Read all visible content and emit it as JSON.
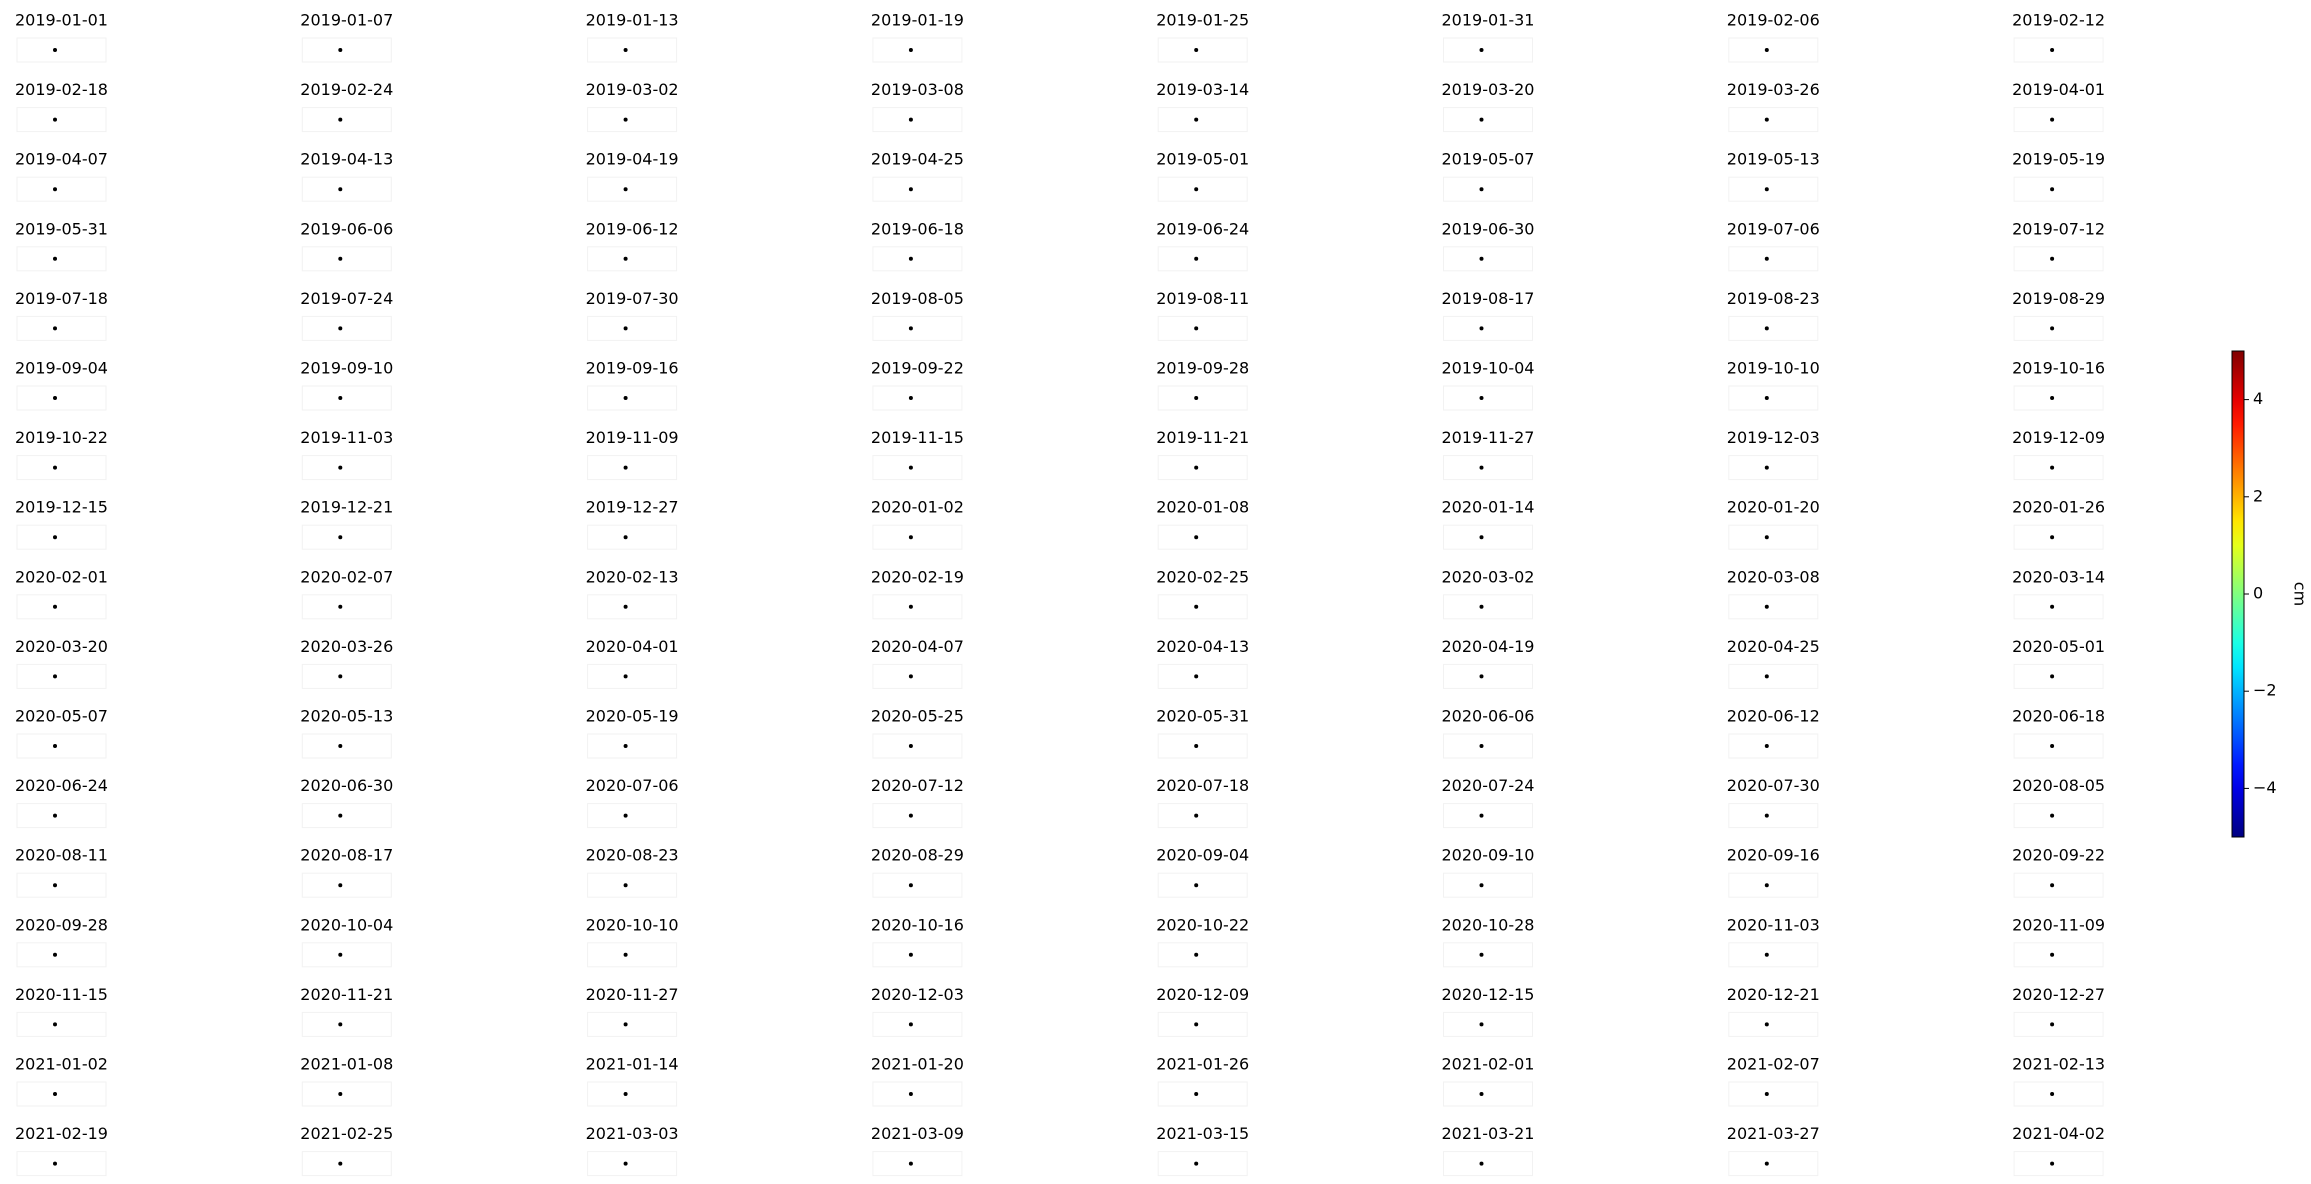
{
  "chart_data": {
    "type": "small-multiples",
    "panels": [
      "2019-01-01",
      "2019-01-07",
      "2019-01-13",
      "2019-01-19",
      "2019-01-25",
      "2019-01-31",
      "2019-02-06",
      "2019-02-12",
      "2019-02-18",
      "2019-02-24",
      "2019-03-02",
      "2019-03-08",
      "2019-03-14",
      "2019-03-20",
      "2019-03-26",
      "2019-04-01",
      "2019-04-07",
      "2019-04-13",
      "2019-04-19",
      "2019-04-25",
      "2019-05-01",
      "2019-05-07",
      "2019-05-13",
      "2019-05-19",
      "2019-05-31",
      "2019-06-06",
      "2019-06-12",
      "2019-06-18",
      "2019-06-24",
      "2019-06-30",
      "2019-07-06",
      "2019-07-12",
      "2019-07-18",
      "2019-07-24",
      "2019-07-30",
      "2019-08-05",
      "2019-08-11",
      "2019-08-17",
      "2019-08-23",
      "2019-08-29",
      "2019-09-04",
      "2019-09-10",
      "2019-09-16",
      "2019-09-22",
      "2019-09-28",
      "2019-10-04",
      "2019-10-10",
      "2019-10-16",
      "2019-10-22",
      "2019-11-03",
      "2019-11-09",
      "2019-11-15",
      "2019-11-21",
      "2019-11-27",
      "2019-12-03",
      "2019-12-09",
      "2019-12-15",
      "2019-12-21",
      "2019-12-27",
      "2020-01-02",
      "2020-01-08",
      "2020-01-14",
      "2020-01-20",
      "2020-01-26",
      "2020-02-01",
      "2020-02-07",
      "2020-02-13",
      "2020-02-19",
      "2020-02-25",
      "2020-03-02",
      "2020-03-08",
      "2020-03-14",
      "2020-03-20",
      "2020-03-26",
      "2020-04-01",
      "2020-04-07",
      "2020-04-13",
      "2020-04-19",
      "2020-04-25",
      "2020-05-01",
      "2020-05-07",
      "2020-05-13",
      "2020-05-19",
      "2020-05-25",
      "2020-05-31",
      "2020-06-06",
      "2020-06-12",
      "2020-06-18",
      "2020-06-24",
      "2020-06-30",
      "2020-07-06",
      "2020-07-12",
      "2020-07-18",
      "2020-07-24",
      "2020-07-30",
      "2020-08-05",
      "2020-08-11",
      "2020-08-17",
      "2020-08-23",
      "2020-08-29",
      "2020-09-04",
      "2020-09-10",
      "2020-09-16",
      "2020-09-22",
      "2020-09-28",
      "2020-10-04",
      "2020-10-10",
      "2020-10-16",
      "2020-10-22",
      "2020-10-28",
      "2020-11-03",
      "2020-11-09",
      "2020-11-15",
      "2020-11-21",
      "2020-11-27",
      "2020-12-03",
      "2020-12-09",
      "2020-12-15",
      "2020-12-21",
      "2020-12-27",
      "2021-01-02",
      "2021-01-08",
      "2021-01-14",
      "2021-01-20",
      "2021-01-26",
      "2021-02-01",
      "2021-02-07",
      "2021-02-13",
      "2021-02-19",
      "2021-02-25",
      "2021-03-03",
      "2021-03-09",
      "2021-03-15",
      "2021-03-21",
      "2021-03-27",
      "2021-04-02"
    ],
    "colorbar": {
      "label": "cm",
      "colormap": "jet",
      "lim": [
        -5,
        5
      ],
      "ticks": [
        {
          "value": -4,
          "label": "−4"
        },
        {
          "value": -2,
          "label": "−2"
        },
        0,
        2,
        4
      ]
    }
  }
}
